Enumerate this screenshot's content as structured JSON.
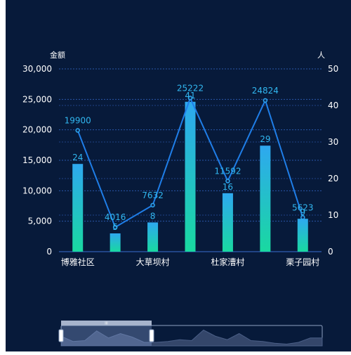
{
  "chart_data": {
    "type": "bar",
    "categories": [
      "博雅社区",
      "",
      "大草坝村",
      "",
      "杜家漕村",
      "",
      "栗子园村"
    ],
    "series": [
      {
        "type": "bar",
        "axis": "right",
        "values": [
          24,
          5,
          8,
          41,
          16,
          29,
          9
        ]
      },
      {
        "type": "line",
        "axis": "left",
        "values": [
          19900,
          4016,
          7632,
          25222,
          11592,
          24824,
          5623
        ]
      }
    ],
    "y_left": {
      "label": "金额",
      "ylim": [
        0,
        30000
      ],
      "ticks": [
        "30,000",
        "25,000",
        "20,000",
        "15,000",
        "10,000",
        "5,000",
        "0"
      ]
    },
    "y_right": {
      "label": "人",
      "ylim": [
        0,
        50
      ],
      "ticks": [
        "50",
        "40",
        "30",
        "20",
        "10",
        "0"
      ]
    },
    "grid": true,
    "data_zoom": {
      "handle_label": "III"
    },
    "colors": {
      "background": "#071a3a",
      "bar_top": "#2ea8f0",
      "bar_bottom": "#19d9a0",
      "line": "#1f7ee8",
      "line_label": "#31b7f0",
      "bar_label": "#31b7f0",
      "axis_text": "#ffffff",
      "grid": "#2a55a8"
    }
  }
}
